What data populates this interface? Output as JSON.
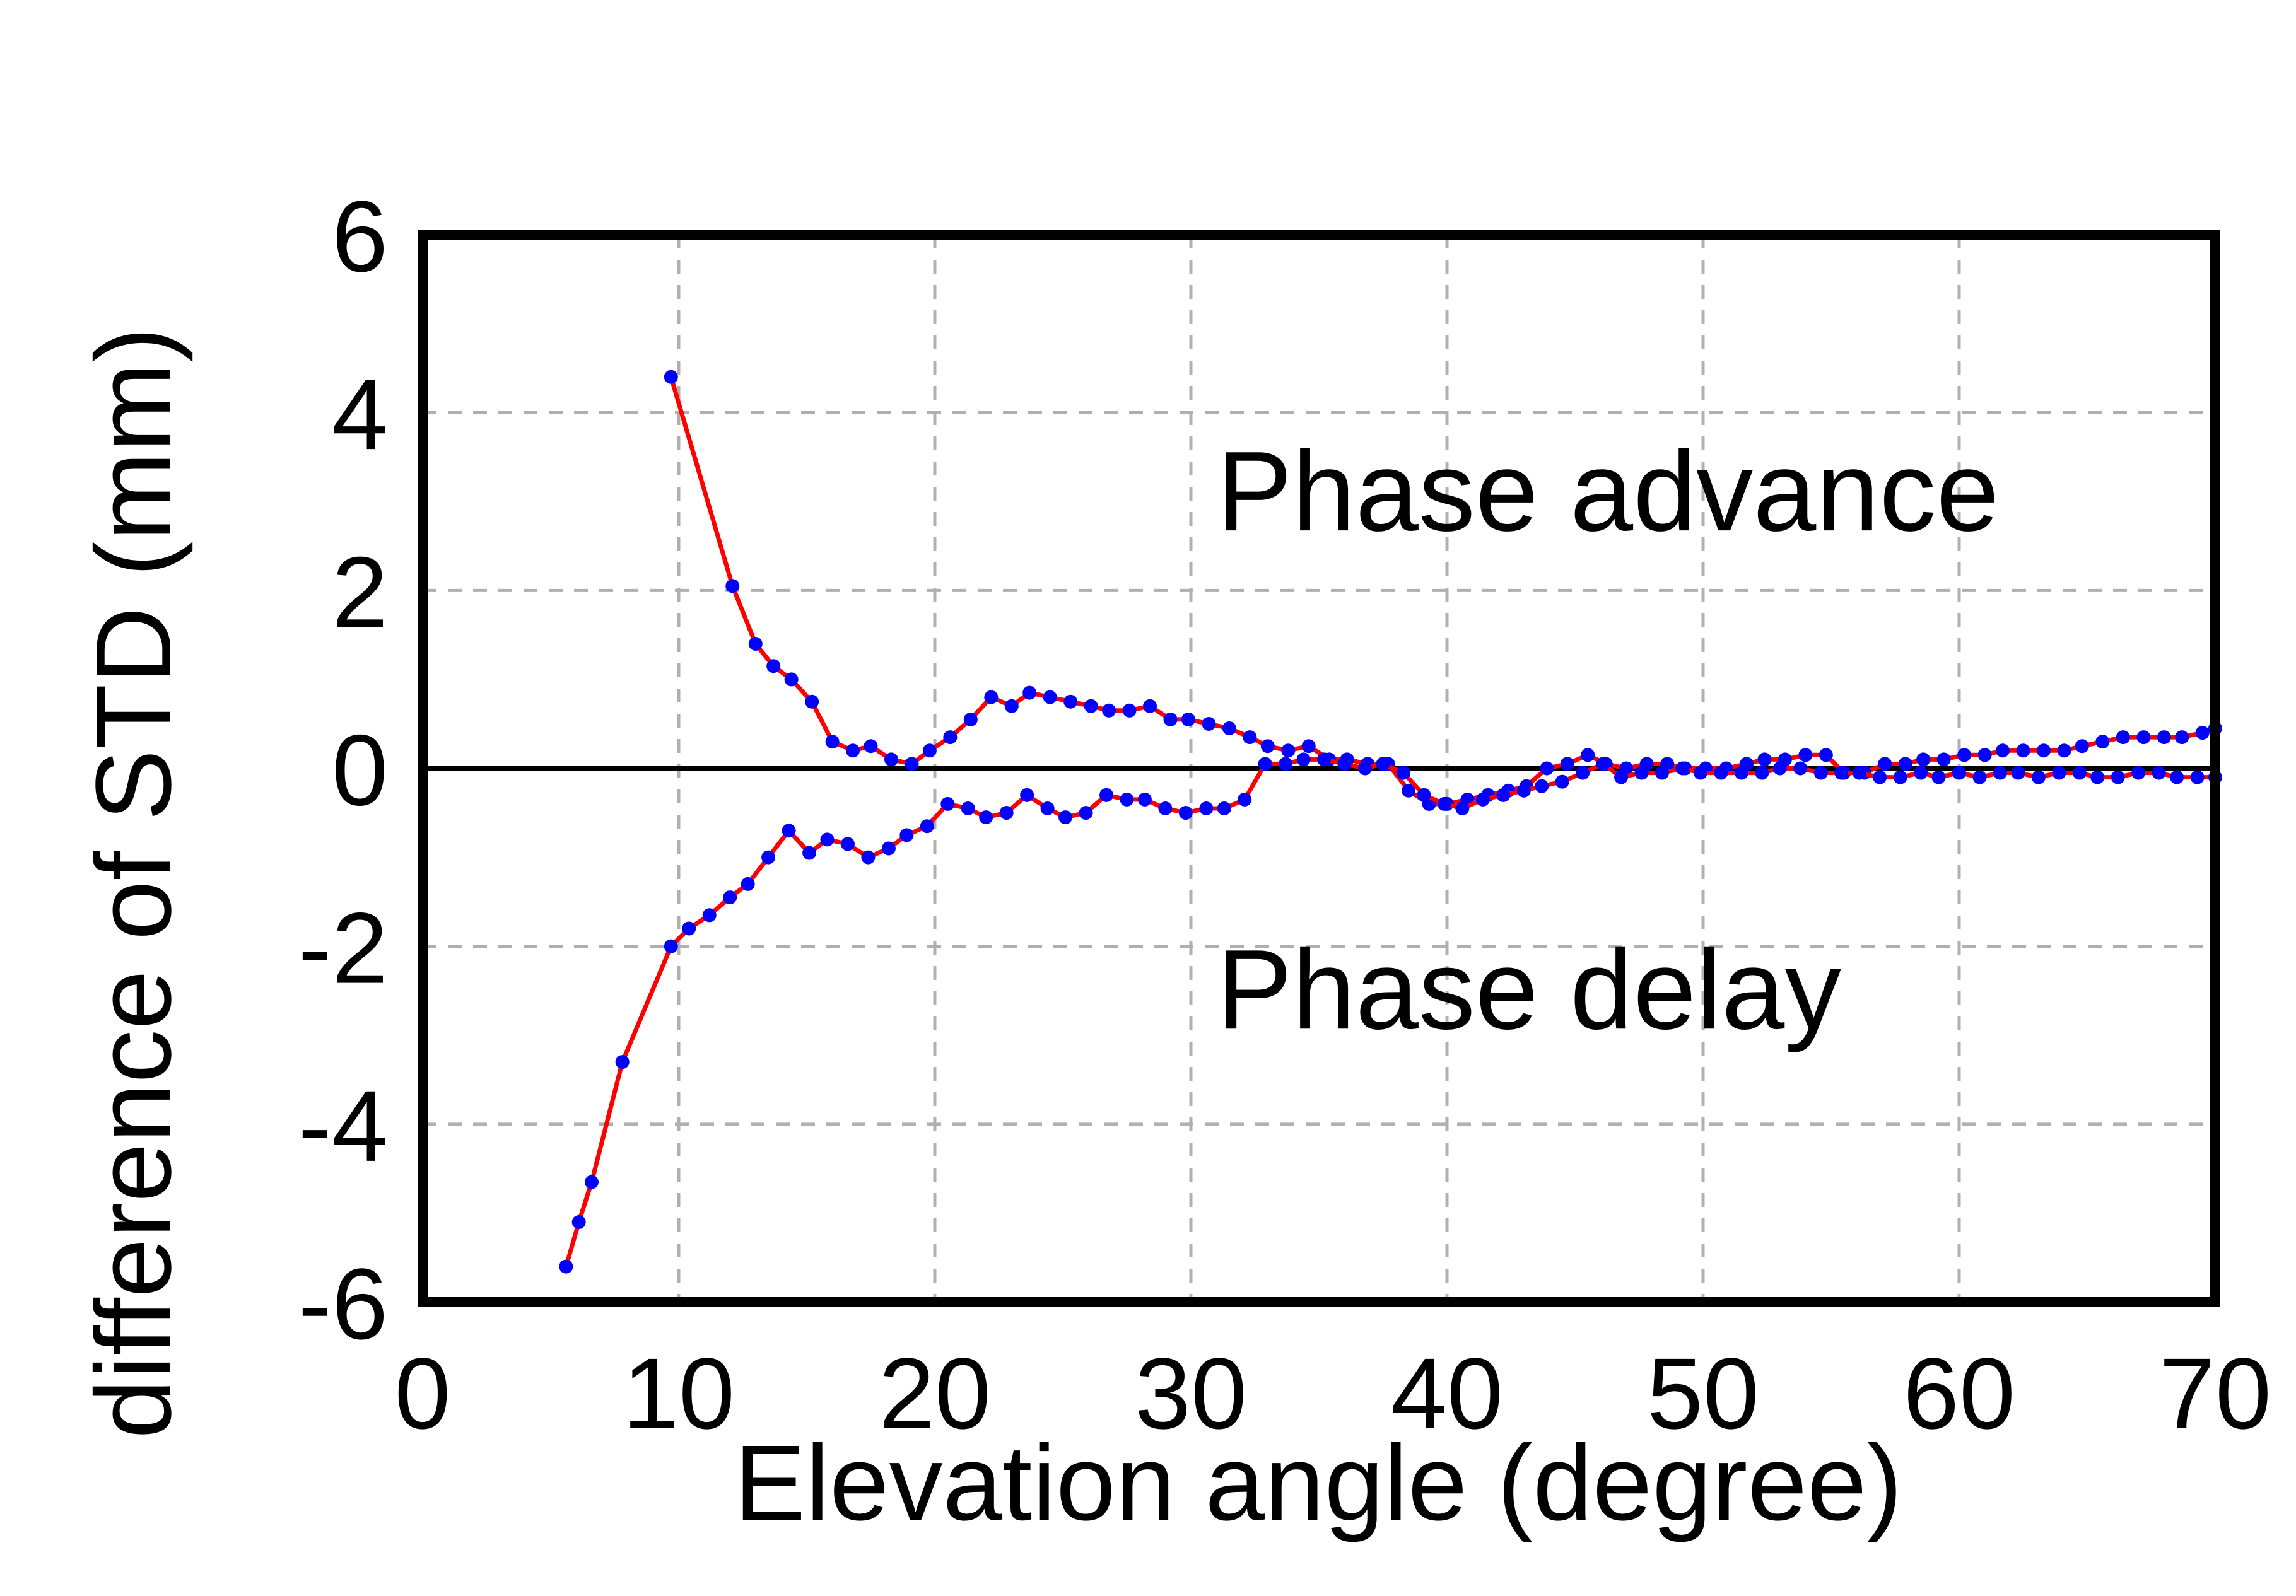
{
  "chart_data": {
    "type": "line",
    "title": "",
    "xlabel": "Elevation angle (degree)",
    "ylabel": "difference of STD (mm)",
    "xlim": [
      0,
      70
    ],
    "ylim": [
      -6,
      6
    ],
    "xticks": [
      0,
      10,
      20,
      30,
      40,
      50,
      60,
      70
    ],
    "yticks": [
      -6,
      -4,
      -2,
      0,
      2,
      4,
      6
    ],
    "xtick_labels": [
      "0",
      "10",
      "20",
      "30",
      "40",
      "50",
      "60",
      "70"
    ],
    "ytick_labels": [
      "-6",
      "-4",
      "-2",
      "0",
      "2",
      "4",
      "6"
    ],
    "grid": true,
    "zero_line": true,
    "annotations": [
      {
        "text": "Phase advance",
        "x": 31,
        "y": 3.1
      },
      {
        "text": "Phase delay",
        "x": 31,
        "y": -2.5
      }
    ],
    "colors": {
      "line": "#ff0000",
      "marker": "#0000ff",
      "grid": "#b0b0b0",
      "axis": "#000000"
    },
    "series": [
      {
        "name": "Phase advance",
        "x": [
          9.7,
          12.1,
          13.0,
          13.7,
          14.4,
          15.2,
          16.0,
          16.8,
          17.5,
          18.3,
          19.1,
          19.8,
          20.6,
          21.4,
          22.2,
          23.0,
          23.7,
          24.5,
          25.3,
          26.1,
          26.8,
          27.6,
          28.4,
          29.2,
          29.9,
          30.7,
          31.5,
          32.3,
          33.0,
          33.8,
          34.6,
          35.4,
          36.1,
          36.9,
          37.7,
          38.5,
          39.3,
          40.0,
          40.8,
          41.6,
          42.4,
          43.1,
          43.9,
          44.7,
          45.5,
          46.2,
          47.0,
          47.8,
          48.6,
          49.3,
          50.1,
          50.9,
          51.7,
          52.4,
          53.2,
          54.0,
          54.8,
          55.5,
          56.3,
          57.1,
          57.9,
          58.6,
          59.4,
          60.2,
          61.0,
          61.7,
          62.5,
          63.3,
          64.1,
          64.8,
          65.6,
          66.4,
          67.2,
          68.0,
          68.7,
          69.5,
          70.0
        ],
        "y": [
          4.4,
          2.05,
          1.4,
          1.15,
          1.0,
          0.75,
          0.3,
          0.2,
          0.25,
          0.1,
          0.05,
          0.2,
          0.35,
          0.55,
          0.8,
          0.7,
          0.85,
          0.8,
          0.75,
          0.7,
          0.65,
          0.65,
          0.7,
          0.55,
          0.55,
          0.5,
          0.45,
          0.35,
          0.25,
          0.2,
          0.25,
          0.1,
          0.1,
          0.05,
          0.05,
          -0.25,
          -0.4,
          -0.4,
          -0.35,
          -0.3,
          -0.25,
          -0.2,
          0.0,
          0.05,
          0.15,
          0.05,
          0.0,
          0.05,
          0.05,
          0.0,
          0.0,
          0.0,
          0.05,
          0.1,
          0.1,
          0.15,
          0.15,
          -0.05,
          -0.05,
          0.05,
          0.05,
          0.1,
          0.1,
          0.15,
          0.15,
          0.2,
          0.2,
          0.2,
          0.2,
          0.25,
          0.3,
          0.35,
          0.35,
          0.35,
          0.35,
          0.4,
          0.45
        ]
      },
      {
        "name": "Phase delay",
        "x": [
          5.6,
          6.1,
          6.6,
          7.8,
          9.7,
          10.4,
          11.2,
          12.0,
          12.7,
          13.5,
          14.3,
          15.1,
          15.8,
          16.6,
          17.4,
          18.2,
          18.9,
          19.7,
          20.5,
          21.3,
          22.0,
          22.8,
          23.6,
          24.4,
          25.1,
          25.9,
          26.7,
          27.5,
          28.2,
          29.0,
          29.8,
          30.6,
          31.3,
          32.1,
          32.9,
          33.7,
          34.4,
          35.2,
          36.0,
          36.8,
          37.5,
          38.3,
          39.1,
          39.9,
          40.6,
          41.4,
          42.2,
          43.0,
          43.7,
          44.5,
          45.3,
          46.1,
          46.8,
          47.6,
          48.4,
          49.2,
          49.9,
          50.7,
          51.5,
          52.3,
          53.0,
          53.8,
          54.6,
          55.4,
          56.1,
          56.9,
          57.7,
          58.5,
          59.2,
          60.0,
          60.8,
          61.6,
          62.3,
          63.1,
          63.9,
          64.7,
          65.4,
          66.2,
          67.0,
          67.8,
          68.5,
          69.3,
          70.0
        ],
        "y": [
          -5.6,
          -5.1,
          -4.65,
          -3.3,
          -2.0,
          -1.8,
          -1.65,
          -1.45,
          -1.3,
          -1.0,
          -0.7,
          -0.95,
          -0.8,
          -0.85,
          -1.0,
          -0.9,
          -0.75,
          -0.65,
          -0.4,
          -0.45,
          -0.55,
          -0.5,
          -0.3,
          -0.45,
          -0.55,
          -0.5,
          -0.3,
          -0.35,
          -0.35,
          -0.45,
          -0.5,
          -0.45,
          -0.45,
          -0.35,
          0.05,
          0.05,
          0.1,
          0.1,
          0.05,
          0.0,
          0.05,
          -0.05,
          -0.3,
          -0.4,
          -0.45,
          -0.35,
          -0.3,
          -0.25,
          -0.2,
          -0.15,
          -0.05,
          0.05,
          -0.1,
          -0.05,
          -0.05,
          0.0,
          -0.05,
          -0.05,
          -0.05,
          -0.05,
          0.0,
          0.0,
          -0.05,
          -0.05,
          -0.05,
          -0.1,
          -0.1,
          -0.05,
          -0.1,
          -0.05,
          -0.1,
          -0.05,
          -0.05,
          -0.1,
          -0.05,
          -0.05,
          -0.1,
          -0.1,
          -0.05,
          -0.05,
          -0.1,
          -0.1,
          -0.1
        ]
      }
    ]
  }
}
